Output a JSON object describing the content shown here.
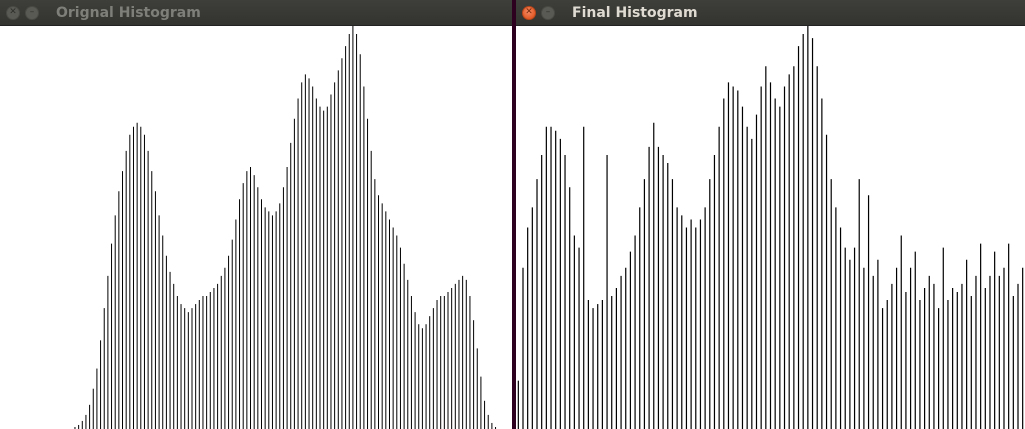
{
  "windows": {
    "left": {
      "title": "Orignal Histogram"
    },
    "right": {
      "title": "Final Histogram"
    }
  },
  "icons": {
    "close": "close-icon",
    "minimize": "minimize-icon"
  },
  "colors": {
    "bar": "#000000",
    "background": "#ffffff",
    "titlebar": "#3c3b37",
    "close_active": "#e95420"
  },
  "chart_data": [
    {
      "type": "bar",
      "xlim": [
        0,
        255
      ],
      "ylim": [
        0,
        1
      ],
      "values": [
        0,
        0,
        0,
        0,
        0,
        0,
        0,
        0,
        0,
        0,
        0,
        0,
        0,
        0,
        0,
        0,
        0,
        0,
        0,
        0,
        0.005,
        0.01,
        0.02,
        0.035,
        0.06,
        0.1,
        0.15,
        0.22,
        0.3,
        0.38,
        0.46,
        0.53,
        0.59,
        0.64,
        0.69,
        0.73,
        0.75,
        0.76,
        0.75,
        0.73,
        0.69,
        0.64,
        0.59,
        0.53,
        0.48,
        0.43,
        0.39,
        0.36,
        0.33,
        0.31,
        0.3,
        0.29,
        0.3,
        0.31,
        0.32,
        0.33,
        0.33,
        0.34,
        0.35,
        0.36,
        0.38,
        0.4,
        0.43,
        0.47,
        0.52,
        0.57,
        0.61,
        0.64,
        0.65,
        0.63,
        0.6,
        0.57,
        0.55,
        0.54,
        0.53,
        0.54,
        0.56,
        0.6,
        0.65,
        0.71,
        0.77,
        0.82,
        0.86,
        0.88,
        0.87,
        0.85,
        0.82,
        0.8,
        0.79,
        0.8,
        0.83,
        0.86,
        0.89,
        0.92,
        0.95,
        0.98,
        1.0,
        0.98,
        0.93,
        0.85,
        0.77,
        0.69,
        0.62,
        0.58,
        0.56,
        0.54,
        0.52,
        0.5,
        0.48,
        0.45,
        0.41,
        0.37,
        0.33,
        0.29,
        0.26,
        0.25,
        0.26,
        0.28,
        0.3,
        0.32,
        0.33,
        0.33,
        0.34,
        0.35,
        0.36,
        0.37,
        0.38,
        0.37,
        0.33,
        0.27,
        0.2,
        0.13,
        0.07,
        0.035,
        0.015,
        0.005,
        0,
        0,
        0,
        0
      ],
      "series_length_note": ""
    },
    {
      "type": "bar",
      "xlim": [
        0,
        255
      ],
      "ylim": [
        0,
        1
      ],
      "values": [
        0.12,
        0.4,
        0.5,
        0.55,
        0.62,
        0.68,
        0.75,
        0.75,
        0.74,
        0.72,
        0.68,
        0.6,
        0.48,
        0.45,
        0.75,
        0.32,
        0.3,
        0.31,
        0.32,
        0.68,
        0.33,
        0.35,
        0.38,
        0.4,
        0.44,
        0.48,
        0.55,
        0.62,
        0.7,
        0.76,
        0.7,
        0.68,
        0.66,
        0.62,
        0.55,
        0.53,
        0.5,
        0.52,
        0.5,
        0.52,
        0.55,
        0.62,
        0.68,
        0.75,
        0.82,
        0.86,
        0.85,
        0.84,
        0.8,
        0.75,
        0.72,
        0.78,
        0.85,
        0.9,
        0.86,
        0.82,
        0.8,
        0.85,
        0.88,
        0.9,
        0.95,
        0.98,
        1.0,
        0.97,
        0.9,
        0.82,
        0.73,
        0.62,
        0.55,
        0.5,
        0.45,
        0.42,
        0.45,
        0.62,
        0.4,
        0.58,
        0.38,
        0.42,
        0.3,
        0.32,
        0.36,
        0.4,
        0.48,
        0.34,
        0.4,
        0.44,
        0.32,
        0.35,
        0.38,
        0.36,
        0.3,
        0.45,
        0.32,
        0.35,
        0.34,
        0.36,
        0.42,
        0.33,
        0.38,
        0.46,
        0.35,
        0.38,
        0.44,
        0.38,
        0.4,
        0.46,
        0.33,
        0.36,
        0.4
      ],
      "series_length_note": ""
    }
  ]
}
